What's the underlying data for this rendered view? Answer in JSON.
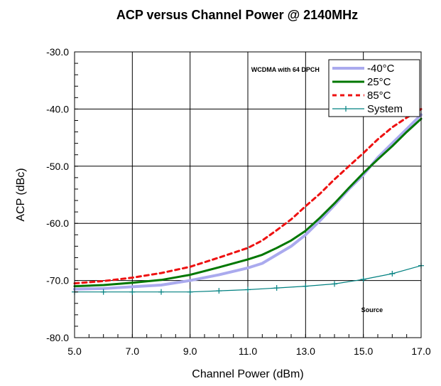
{
  "chart_data": {
    "type": "line",
    "title": "ACP versus Channel Power @ 2140MHz",
    "xlabel": "Channel Power (dBm)",
    "ylabel": "ACP (dBc)",
    "xlim": [
      5,
      17
    ],
    "ylim": [
      -80,
      -30
    ],
    "x_ticks": [
      5,
      7,
      9,
      11,
      13,
      15,
      17
    ],
    "y_ticks": [
      -80,
      -70,
      -60,
      -50,
      -40,
      -30
    ],
    "x_tick_labels": [
      "5.0",
      "7.0",
      "9.0",
      "11.0",
      "13.0",
      "15.0",
      "17.0"
    ],
    "y_tick_labels": [
      "-80.0",
      "-70.0",
      "-60.0",
      "-50.0",
      "-40.0",
      "-30.0"
    ],
    "grid": true,
    "legend_position": "top-right",
    "annotations": [
      {
        "text": "WCDMA with 64 DPCH",
        "x": 12.3,
        "y": -33.5
      },
      {
        "text": "Source",
        "x": 15.3,
        "y": -75.5
      }
    ],
    "series": [
      {
        "name": "-40°C",
        "color": "#aaaaee",
        "dash": "solid",
        "x": [
          5,
          6,
          7,
          8,
          9,
          10,
          11,
          11.5,
          12,
          12.5,
          13,
          13.5,
          14,
          14.5,
          15,
          15.5,
          16,
          16.5,
          17
        ],
        "y": [
          -71.5,
          -71.4,
          -71.1,
          -70.8,
          -70.0,
          -69.0,
          -67.8,
          -67.0,
          -65.5,
          -64.0,
          -62.0,
          -59.5,
          -56.8,
          -54.0,
          -51.5,
          -48.5,
          -46.0,
          -43.5,
          -41.0
        ]
      },
      {
        "name": "25°C",
        "color": "#007700",
        "dash": "solid",
        "x": [
          5,
          6,
          7,
          8,
          9,
          10,
          11,
          11.5,
          12,
          12.5,
          13,
          13.5,
          14,
          14.5,
          15,
          15.5,
          16,
          16.5,
          17
        ],
        "y": [
          -71.0,
          -70.8,
          -70.4,
          -69.9,
          -69.0,
          -67.7,
          -66.3,
          -65.5,
          -64.3,
          -63.0,
          -61.3,
          -59.0,
          -56.5,
          -53.8,
          -51.2,
          -48.8,
          -46.5,
          -44.0,
          -41.7
        ]
      },
      {
        "name": "85°C",
        "color": "#ee1111",
        "dash": "dashed",
        "x": [
          5,
          6,
          7,
          8,
          9,
          10,
          11,
          11.5,
          12,
          12.5,
          13,
          13.5,
          14,
          14.5,
          15,
          15.5,
          16,
          16.5,
          17
        ],
        "y": [
          -70.5,
          -70.1,
          -69.5,
          -68.7,
          -67.6,
          -66.0,
          -64.3,
          -63.0,
          -61.2,
          -59.3,
          -57.0,
          -54.8,
          -52.3,
          -50.0,
          -47.7,
          -45.3,
          -43.2,
          -41.5,
          -40.0
        ]
      },
      {
        "name": "System",
        "color": "#008080",
        "dash": "solid",
        "marker": "plus",
        "x": [
          5,
          6,
          7,
          8,
          9,
          10,
          11,
          12,
          13,
          14,
          15,
          16,
          17
        ],
        "y": [
          -72.0,
          -72.0,
          -72.0,
          -72.0,
          -72.0,
          -71.8,
          -71.6,
          -71.3,
          -71.0,
          -70.6,
          -69.8,
          -68.8,
          -67.4
        ]
      }
    ]
  }
}
